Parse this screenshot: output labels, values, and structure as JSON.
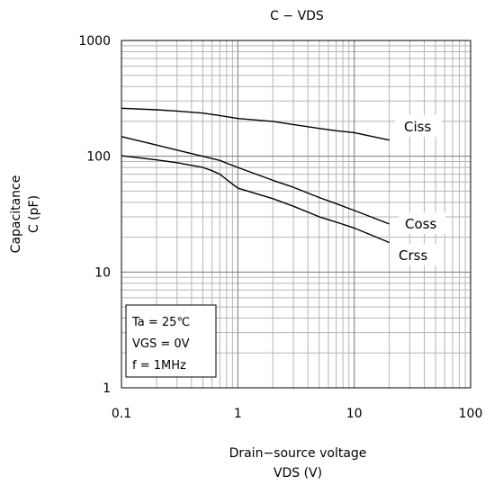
{
  "chart_data": {
    "type": "line",
    "title": "C − VDS",
    "xlabel": [
      "Drain−source voltage",
      "VDS (V)"
    ],
    "ylabel": [
      "Capacitance",
      "C (pF)"
    ],
    "x_scale": "log",
    "y_scale": "log",
    "xlim": [
      0.1,
      100
    ],
    "ylim": [
      1,
      1000
    ],
    "x_ticks": [
      "0.1",
      "1",
      "10",
      "100"
    ],
    "y_ticks": [
      "1",
      "10",
      "100",
      "1000"
    ],
    "grid": true,
    "series": [
      {
        "name": "Ciss",
        "x": [
          0.1,
          0.2,
          0.3,
          0.5,
          0.7,
          1,
          2,
          3,
          5,
          7,
          10,
          20
        ],
        "y": [
          260,
          252,
          246,
          236,
          225,
          212,
          200,
          188,
          174,
          166,
          160,
          138
        ]
      },
      {
        "name": "Coss",
        "x": [
          0.1,
          0.2,
          0.3,
          0.5,
          0.7,
          1,
          2,
          3,
          5,
          7,
          10,
          20
        ],
        "y": [
          148,
          125,
          113,
          100,
          92,
          80,
          62,
          54,
          44,
          39,
          34,
          26
        ]
      },
      {
        "name": "Crss",
        "x": [
          0.1,
          0.2,
          0.3,
          0.5,
          0.6,
          0.7,
          0.8,
          1,
          2,
          3,
          5,
          7,
          10,
          20
        ],
        "y": [
          101,
          93,
          88,
          80,
          75,
          70,
          63,
          53,
          43,
          37,
          30,
          27,
          24,
          18
        ]
      }
    ],
    "annotations": [
      "Ta = 25℃",
      "VGS = 0V",
      "f = 1MHz"
    ]
  }
}
